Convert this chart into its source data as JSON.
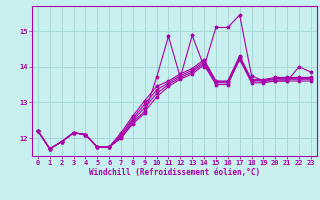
{
  "xlabel": "Windchill (Refroidissement éolien,°C)",
  "bg_color": "#c8f0ee",
  "grid_color": "#a8d8d8",
  "line_color": "#aa00aa",
  "xlim": [
    -0.5,
    23.5
  ],
  "ylim": [
    11.5,
    15.7
  ],
  "xticks": [
    0,
    1,
    2,
    3,
    4,
    5,
    6,
    7,
    8,
    9,
    10,
    11,
    12,
    13,
    14,
    15,
    16,
    17,
    18,
    19,
    20,
    21,
    22,
    23
  ],
  "yticks": [
    12,
    13,
    14,
    15
  ],
  "series": [
    [
      12.2,
      11.7,
      11.9,
      12.15,
      12.1,
      11.75,
      11.75,
      12.0,
      12.4,
      12.7,
      13.7,
      14.85,
      13.7,
      14.88,
      14.0,
      15.1,
      15.1,
      15.45,
      13.75,
      13.6,
      13.6,
      13.6,
      14.0,
      13.85
    ],
    [
      12.2,
      11.7,
      11.9,
      12.15,
      12.1,
      11.75,
      11.75,
      12.0,
      12.45,
      12.75,
      13.15,
      13.45,
      13.65,
      13.8,
      14.05,
      13.5,
      13.5,
      14.2,
      13.55,
      13.55,
      13.6,
      13.6,
      13.6,
      13.6
    ],
    [
      12.2,
      11.7,
      11.9,
      12.15,
      12.1,
      11.75,
      11.75,
      12.05,
      12.5,
      12.85,
      13.25,
      13.5,
      13.7,
      13.85,
      14.1,
      13.55,
      13.55,
      14.25,
      13.6,
      13.6,
      13.65,
      13.65,
      13.65,
      13.65
    ],
    [
      12.2,
      11.7,
      11.9,
      12.15,
      12.1,
      11.75,
      11.75,
      12.1,
      12.55,
      12.95,
      13.35,
      13.55,
      13.75,
      13.9,
      14.15,
      13.58,
      13.58,
      14.28,
      13.62,
      13.62,
      13.67,
      13.67,
      13.67,
      13.67
    ],
    [
      12.2,
      11.7,
      11.9,
      12.15,
      12.1,
      11.75,
      11.75,
      12.15,
      12.62,
      13.05,
      13.45,
      13.6,
      13.8,
      13.95,
      14.2,
      13.6,
      13.6,
      14.3,
      13.64,
      13.64,
      13.7,
      13.7,
      13.7,
      13.7
    ]
  ]
}
